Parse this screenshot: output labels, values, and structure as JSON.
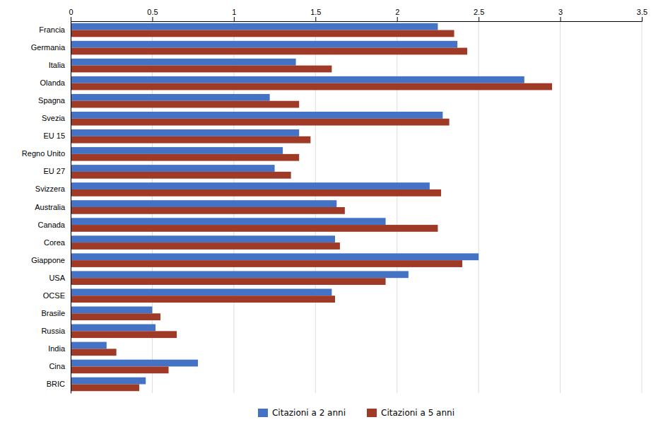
{
  "chart_data": {
    "type": "bar",
    "orientation": "horizontal",
    "categories": [
      "Francia",
      "Germania",
      "Italia",
      "Olanda",
      "Spagna",
      "Svezia",
      "EU 15",
      "Regno Unito",
      "EU 27",
      "Svizzera",
      "Australia",
      "Canada",
      "Corea",
      "Giappone",
      "USA",
      "OCSE",
      "Brasile",
      "Russia",
      "India",
      "Cina",
      "BRIC"
    ],
    "series": [
      {
        "name": "Citazioni a 2 anni",
        "color": "#4472C4",
        "values": [
          2.25,
          2.37,
          1.38,
          2.78,
          1.22,
          2.28,
          1.4,
          1.3,
          1.25,
          2.2,
          1.63,
          1.93,
          1.62,
          2.5,
          2.07,
          1.6,
          0.5,
          0.52,
          0.22,
          0.78,
          0.46
        ]
      },
      {
        "name": "Citazioni a 5 anni",
        "color": "#9E3A26",
        "values": [
          2.35,
          2.43,
          1.6,
          2.95,
          1.4,
          2.32,
          1.47,
          1.4,
          1.35,
          2.27,
          1.68,
          2.25,
          1.65,
          2.4,
          1.93,
          1.62,
          0.55,
          0.65,
          0.28,
          0.6,
          0.42
        ]
      }
    ],
    "xlim": [
      0,
      3.5
    ],
    "xticks": [
      0,
      0.5,
      1,
      1.5,
      2,
      2.5,
      3,
      3.5
    ],
    "grid": true,
    "legend": "bottom"
  }
}
